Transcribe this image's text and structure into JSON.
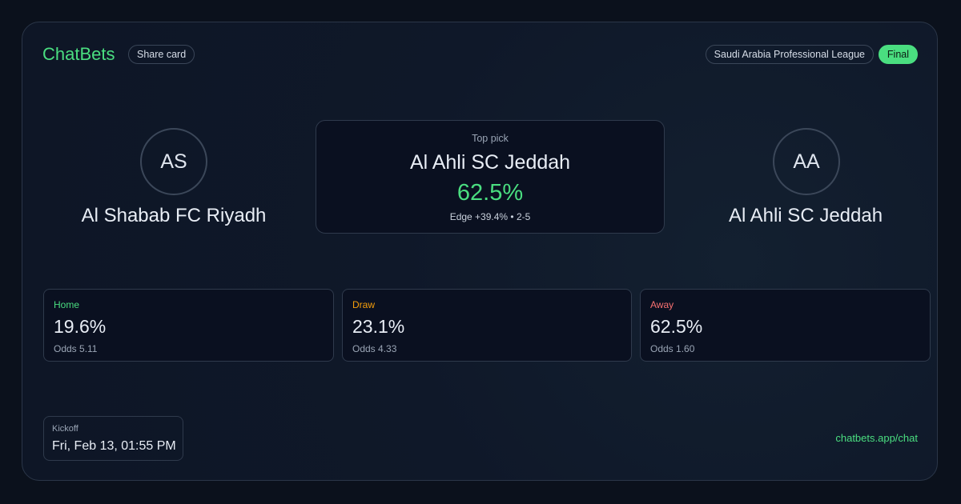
{
  "header": {
    "brand": "ChatBets",
    "share": "Share card",
    "league": "Saudi Arabia Professional League",
    "status": "Final"
  },
  "home": {
    "initials": "AS",
    "name": "Al Shabab FC Riyadh"
  },
  "away": {
    "initials": "AA",
    "name": "Al Ahli SC Jeddah"
  },
  "top_pick": {
    "label": "Top pick",
    "team": "Al Ahli SC Jeddah",
    "probability": "62.5%",
    "edge": "Edge +39.4% • 2-5"
  },
  "outcomes": [
    {
      "label": "Home",
      "probability": "19.6%",
      "odds": "Odds 5.11"
    },
    {
      "label": "Draw",
      "probability": "23.1%",
      "odds": "Odds 4.33"
    },
    {
      "label": "Away",
      "probability": "62.5%",
      "odds": "Odds 1.60"
    }
  ],
  "kickoff": {
    "label": "Kickoff",
    "time": "Fri, Feb 13, 01:55 PM"
  },
  "footer": {
    "link": "chatbets.app/chat"
  }
}
